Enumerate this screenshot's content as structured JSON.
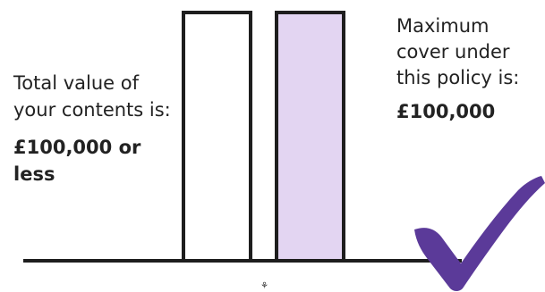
{
  "left_label": {
    "line1": "Total value of your contents is:",
    "amount": "£100,000 or less"
  },
  "right_label": {
    "line1": "Maximum cover under this policy is:",
    "amount": "£100,000"
  },
  "bars": [
    {
      "name": "contents-value",
      "fill": "#ffffff"
    },
    {
      "name": "maximum-cover",
      "fill": "#e3d5f2"
    }
  ],
  "colors": {
    "outline": "#1e1e1e",
    "cover_fill": "#e3d5f2",
    "check": "#5b3a99"
  },
  "icons": {
    "check": "checkmark-icon",
    "small_mark": "small-icon"
  },
  "small_mark_glyph": "⚘"
}
